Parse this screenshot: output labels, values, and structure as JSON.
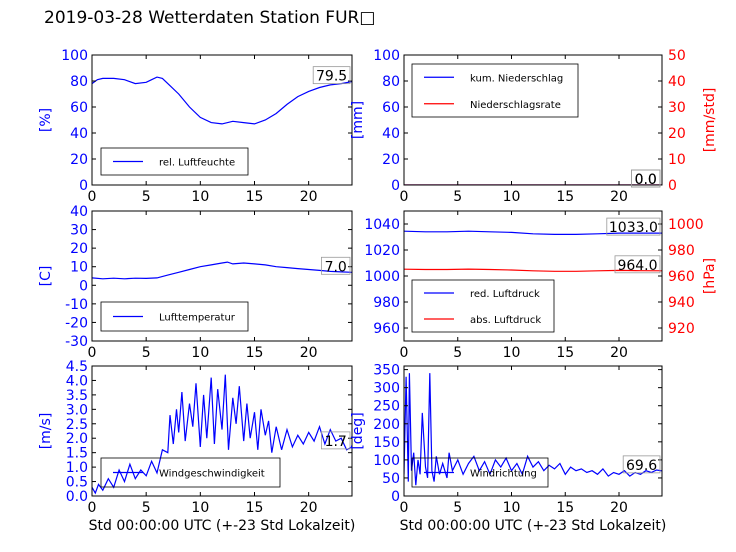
{
  "title": "2019-03-28 Wetterdaten Station FUR□",
  "colors": {
    "primary": "#0000ff",
    "secondary": "#ff0000",
    "axis": "#000000"
  },
  "chart_data": [
    {
      "id": "humidity",
      "type": "line",
      "xlim": [
        0,
        24
      ],
      "ylim": [
        0,
        100
      ],
      "x_ticks": [
        0,
        5,
        10,
        15,
        20
      ],
      "y_ticks": [
        0,
        20,
        40,
        60,
        80,
        100
      ],
      "ylabel": "[%]",
      "xlabel": "",
      "last_value_label": "79.5",
      "legend_position": "lower-left",
      "series": [
        {
          "name": "rel. Luftfeuchte",
          "color": "#0000ff",
          "x": [
            0,
            0.5,
            1,
            2,
            3,
            4,
            5,
            5.5,
            6,
            6.5,
            7,
            8,
            9,
            10,
            11,
            12,
            13,
            14,
            15,
            16,
            17,
            18,
            19,
            20,
            21,
            22,
            23,
            24
          ],
          "y": [
            78,
            81,
            82,
            82,
            81,
            78,
            79,
            81,
            83,
            82,
            78,
            70,
            60,
            52,
            48,
            47,
            49,
            48,
            47,
            50,
            55,
            62,
            68,
            72,
            75,
            77,
            78,
            79.5
          ]
        }
      ]
    },
    {
      "id": "precipitation",
      "type": "line",
      "xlim": [
        0,
        24
      ],
      "ylim": [
        0,
        100
      ],
      "x_ticks": [
        0,
        5,
        10,
        15,
        20
      ],
      "y_ticks": [
        0,
        20,
        40,
        60,
        80,
        100
      ],
      "y2lim": [
        0,
        50
      ],
      "y2_ticks": [
        0,
        10,
        20,
        30,
        40,
        50
      ],
      "ylabel": "[mm]",
      "y2label": "[mm/std]",
      "xlabel": "",
      "last_value_label": "0.0",
      "last_value_label_2": "0.0",
      "legend_position": "upper-left",
      "series": [
        {
          "name": "kum. Niederschlag",
          "color": "#0000ff",
          "axis": "left",
          "x": [
            0,
            24
          ],
          "y": [
            0,
            0
          ]
        },
        {
          "name": "Niederschlagsrate",
          "color": "#ff0000",
          "axis": "right",
          "x": [
            0,
            24
          ],
          "y": [
            0,
            0
          ]
        }
      ]
    },
    {
      "id": "temperature",
      "type": "line",
      "xlim": [
        0,
        24
      ],
      "ylim": [
        -30,
        40
      ],
      "x_ticks": [
        0,
        5,
        10,
        15,
        20
      ],
      "y_ticks": [
        -30,
        -20,
        -10,
        0,
        10,
        20,
        30,
        40
      ],
      "ylabel": "[C]",
      "xlabel": "",
      "last_value_label": "7.0",
      "legend_position": "lower-left",
      "series": [
        {
          "name": "Lufttemperatur",
          "color": "#0000ff",
          "x": [
            0,
            1,
            2,
            3,
            4,
            5,
            6,
            7,
            8,
            9,
            10,
            11,
            12,
            12.5,
            13,
            14,
            15,
            16,
            17,
            18,
            19,
            20,
            21,
            22,
            23,
            24
          ],
          "y": [
            4,
            3.5,
            3.8,
            3.5,
            3.8,
            3.7,
            4,
            5.5,
            7,
            8.5,
            10,
            11,
            12,
            12.5,
            11.5,
            12,
            11.5,
            11,
            10,
            9.5,
            9,
            8.5,
            8,
            7.5,
            7.2,
            7.0
          ]
        }
      ]
    },
    {
      "id": "pressure",
      "type": "line",
      "xlim": [
        0,
        24
      ],
      "ylim": [
        950,
        1050
      ],
      "x_ticks": [
        0,
        5,
        10,
        15,
        20
      ],
      "y_ticks": [
        960,
        980,
        1000,
        1020,
        1040
      ],
      "y2lim": [
        910,
        1010
      ],
      "y2_ticks": [
        920,
        940,
        960,
        980,
        1000
      ],
      "ylabel": "",
      "y2label": "[hPa]",
      "xlabel": "",
      "last_value_label": "1033.0",
      "last_value_label_2": "964.0",
      "legend_position": "lower-left",
      "series": [
        {
          "name": "red. Luftdruck",
          "color": "#0000ff",
          "axis": "left",
          "x": [
            0,
            2,
            4,
            6,
            8,
            10,
            12,
            14,
            16,
            18,
            20,
            22,
            24
          ],
          "y": [
            1034.5,
            1034,
            1034,
            1034.5,
            1034,
            1033.5,
            1032.5,
            1032,
            1032,
            1032.5,
            1033,
            1033,
            1033.0
          ]
        },
        {
          "name": "abs. Luftdruck",
          "color": "#ff0000",
          "axis": "right",
          "x": [
            0,
            2,
            4,
            6,
            8,
            10,
            12,
            14,
            16,
            18,
            20,
            22,
            24
          ],
          "y": [
            965.2,
            965.0,
            965.0,
            965.3,
            965.0,
            964.6,
            964.0,
            963.6,
            963.6,
            964.0,
            964.3,
            964.1,
            964.0
          ]
        }
      ]
    },
    {
      "id": "wind_speed",
      "type": "line",
      "xlim": [
        0,
        24
      ],
      "ylim": [
        0,
        4.5
      ],
      "x_ticks": [
        0,
        5,
        10,
        15,
        20
      ],
      "y_ticks": [
        0.0,
        0.5,
        1.0,
        1.5,
        2.0,
        2.5,
        3.0,
        3.5,
        4.0,
        4.5
      ],
      "ylabel": "[m/s]",
      "xlabel": "Std 00:00:00 UTC (+-23 Std Lokalzeit)",
      "last_value_label": "1.7",
      "legend_position": "lower-left",
      "series": [
        {
          "name": "Windgeschwindigkeit",
          "color": "#0000ff",
          "x": [
            0,
            0.3,
            0.6,
            1,
            1.5,
            2,
            2.5,
            3,
            3.5,
            4,
            4.5,
            5,
            5.5,
            6,
            6.5,
            7,
            7.2,
            7.5,
            7.8,
            8,
            8.3,
            8.6,
            9,
            9.3,
            9.6,
            10,
            10.3,
            10.6,
            11,
            11.3,
            11.6,
            12,
            12.3,
            12.6,
            13,
            13.3,
            13.6,
            14,
            14.3,
            14.6,
            15,
            15.3,
            15.6,
            16,
            16.3,
            16.6,
            17,
            17.5,
            18,
            18.5,
            19,
            19.5,
            20,
            20.5,
            21,
            21.5,
            22,
            22.5,
            23,
            23.5,
            24
          ],
          "y": [
            0.3,
            0.1,
            0.4,
            0.2,
            0.6,
            0.3,
            0.9,
            0.5,
            1.1,
            0.6,
            0.9,
            0.7,
            1.2,
            0.8,
            1.6,
            1.5,
            2.8,
            1.8,
            3.0,
            2.2,
            3.6,
            1.9,
            3.2,
            2.4,
            3.9,
            1.7,
            3.5,
            2.0,
            4.1,
            1.8,
            3.7,
            2.3,
            4.2,
            1.6,
            3.4,
            2.5,
            3.8,
            1.9,
            3.2,
            2.0,
            2.9,
            1.6,
            3.0,
            2.1,
            2.6,
            1.5,
            2.4,
            1.6,
            2.3,
            1.7,
            2.1,
            1.8,
            2.2,
            1.9,
            2.4,
            1.8,
            2.3,
            1.9,
            2.0,
            1.6,
            1.7
          ]
        }
      ]
    },
    {
      "id": "wind_direction",
      "type": "line",
      "xlim": [
        0,
        24
      ],
      "ylim": [
        0,
        360
      ],
      "x_ticks": [
        0,
        5,
        10,
        15,
        20
      ],
      "y_ticks": [
        0,
        50,
        100,
        150,
        200,
        250,
        300,
        350
      ],
      "ylabel": "[deg]",
      "xlabel": "Std 00:00:00 UTC (+-23 Std Lokalzeit)",
      "last_value_label": "69.6",
      "legend_position": "lower-left",
      "series": [
        {
          "name": "Windrichtung",
          "color": "#0000ff",
          "x": [
            0,
            0.2,
            0.4,
            0.5,
            0.7,
            0.9,
            1.1,
            1.3,
            1.5,
            1.7,
            2,
            2.2,
            2.4,
            2.6,
            2.8,
            3,
            3.3,
            3.6,
            4,
            4.2,
            4.5,
            5,
            5.5,
            6,
            6.5,
            7,
            7.5,
            8,
            8.5,
            9,
            9.5,
            10,
            10.5,
            11,
            11.5,
            12,
            12.5,
            13,
            13.5,
            14,
            14.5,
            15,
            15.5,
            16,
            16.5,
            17,
            17.5,
            18,
            18.5,
            19,
            19.5,
            20,
            20.5,
            21,
            21.5,
            22,
            22.5,
            23,
            23.5,
            24
          ],
          "y": [
            60,
            330,
            40,
            340,
            70,
            120,
            30,
            100,
            60,
            230,
            80,
            50,
            340,
            70,
            40,
            110,
            60,
            90,
            50,
            120,
            70,
            100,
            60,
            90,
            110,
            70,
            95,
            60,
            100,
            80,
            105,
            70,
            90,
            60,
            110,
            80,
            95,
            70,
            85,
            75,
            90,
            60,
            80,
            70,
            75,
            65,
            70,
            60,
            75,
            55,
            65,
            60,
            70,
            55,
            65,
            60,
            70,
            65,
            72,
            69.6
          ]
        }
      ]
    }
  ]
}
